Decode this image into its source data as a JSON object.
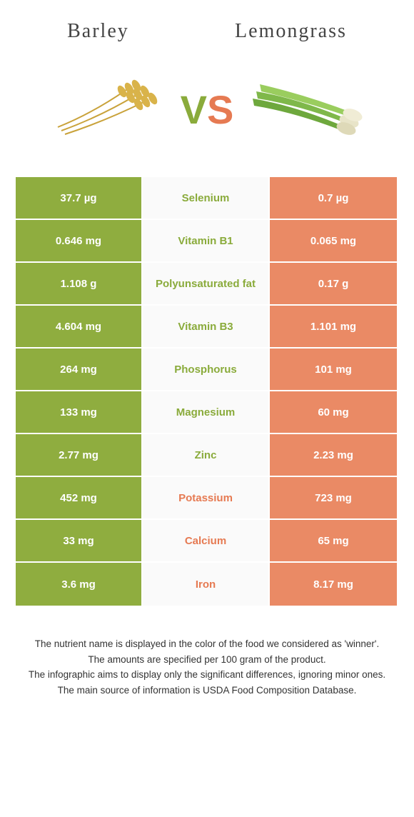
{
  "header": {
    "left": "Barley",
    "right": "Lemongrass"
  },
  "vs": {
    "v": "V",
    "s": "S"
  },
  "colors": {
    "green": "#8fad3f",
    "orange": "#ea8a65",
    "green_text": "#8aab3b",
    "orange_text": "#e67a52"
  },
  "rows": [
    {
      "left": "37.7 µg",
      "label": "Selenium",
      "right": "0.7 µg",
      "winner": "left"
    },
    {
      "left": "0.646 mg",
      "label": "Vitamin B1",
      "right": "0.065 mg",
      "winner": "left"
    },
    {
      "left": "1.108 g",
      "label": "Polyunsaturated fat",
      "right": "0.17 g",
      "winner": "left"
    },
    {
      "left": "4.604 mg",
      "label": "Vitamin B3",
      "right": "1.101 mg",
      "winner": "left"
    },
    {
      "left": "264 mg",
      "label": "Phosphorus",
      "right": "101 mg",
      "winner": "left"
    },
    {
      "left": "133 mg",
      "label": "Magnesium",
      "right": "60 mg",
      "winner": "left"
    },
    {
      "left": "2.77 mg",
      "label": "Zinc",
      "right": "2.23 mg",
      "winner": "left"
    },
    {
      "left": "452 mg",
      "label": "Potassium",
      "right": "723 mg",
      "winner": "right"
    },
    {
      "left": "33 mg",
      "label": "Calcium",
      "right": "65 mg",
      "winner": "right"
    },
    {
      "left": "3.6 mg",
      "label": "Iron",
      "right": "8.17 mg",
      "winner": "right"
    }
  ],
  "footnotes": [
    "The nutrient name is displayed in the color of the food we considered as 'winner'.",
    "The amounts are specified per 100 gram of the product.",
    "The infographic aims to display only the significant differences, ignoring minor ones.",
    "The main source of information is USDA Food Composition Database."
  ]
}
